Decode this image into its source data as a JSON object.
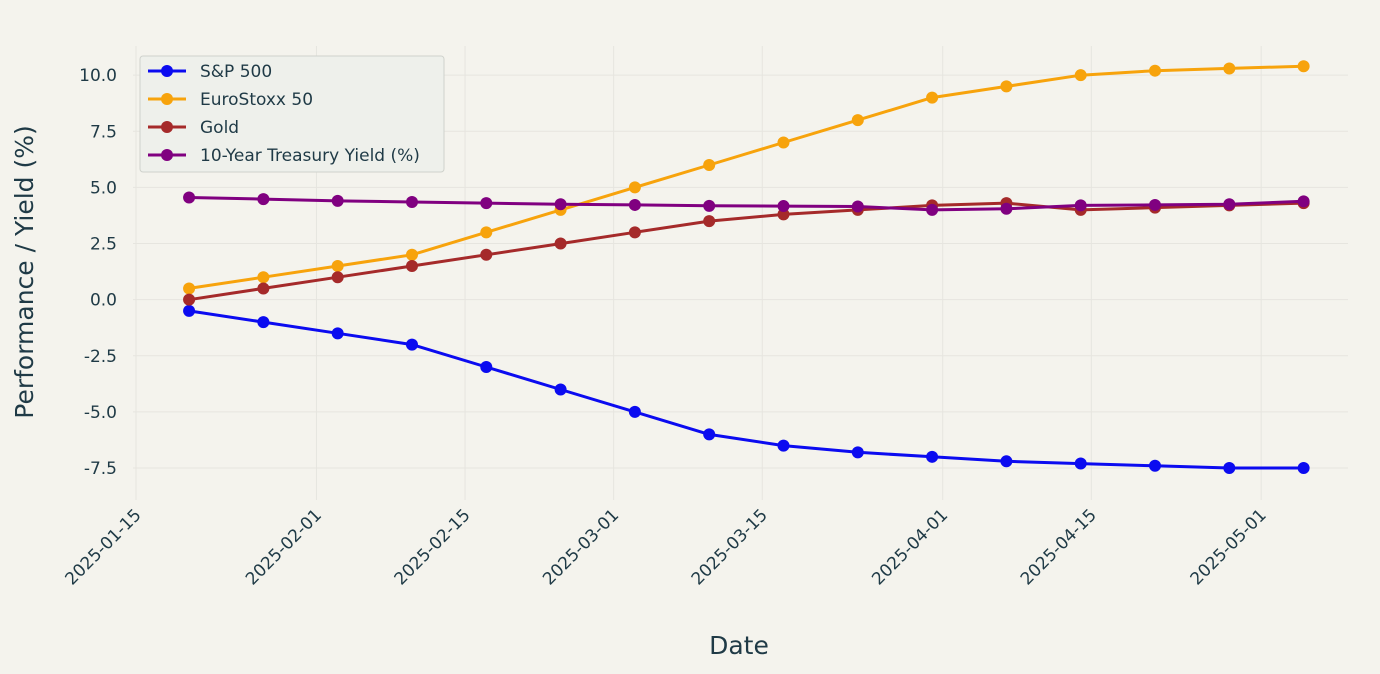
{
  "chart_data": {
    "type": "line",
    "title": "",
    "xlabel": "Date",
    "ylabel": "Performance / Yield (%)",
    "x_ticks": [
      "2025-01-15",
      "2025-02-01",
      "2025-02-15",
      "2025-03-01",
      "2025-03-15",
      "2025-04-01",
      "2025-04-15",
      "2025-05-01"
    ],
    "y_ticks": [
      "10.0",
      "7.5",
      "5.0",
      "2.5",
      "0.0",
      "-2.5",
      "-5.0",
      "-7.5"
    ],
    "xlim": [
      "2025-01-15",
      "2025-05-04"
    ],
    "ylim": [
      -8.3,
      11.3
    ],
    "grid": true,
    "legend_position": "top-left",
    "x": [
      "2025-01-20",
      "2025-01-27",
      "2025-02-03",
      "2025-02-10",
      "2025-02-17",
      "2025-02-24",
      "2025-03-03",
      "2025-03-10",
      "2025-03-17",
      "2025-03-24",
      "2025-03-31",
      "2025-04-07",
      "2025-04-14",
      "2025-04-21",
      "2025-04-28",
      "2025-05-05"
    ],
    "series": [
      {
        "name": "S&P 500",
        "color": "#0b0bf0",
        "values": [
          -0.5,
          -1.0,
          -1.5,
          -2.0,
          -3.0,
          -4.0,
          -5.0,
          -6.0,
          -6.5,
          -6.8,
          -7.0,
          -7.2,
          -7.3,
          -7.4,
          -7.5,
          -7.5
        ]
      },
      {
        "name": "EuroStoxx 50",
        "color": "#f7a30c",
        "values": [
          0.5,
          1.0,
          1.5,
          2.0,
          3.0,
          4.0,
          5.0,
          6.0,
          7.0,
          8.0,
          9.0,
          9.5,
          10.0,
          10.2,
          10.3,
          10.4
        ]
      },
      {
        "name": "Gold",
        "color": "#a52a2a",
        "values": [
          0.0,
          0.5,
          1.0,
          1.5,
          2.0,
          2.5,
          3.0,
          3.5,
          3.8,
          4.0,
          4.2,
          4.3,
          4.0,
          4.1,
          4.2,
          4.3
        ]
      },
      {
        "name": "10-Year Treasury Yield (%)",
        "color": "#800080",
        "values": [
          4.55,
          4.48,
          4.4,
          4.35,
          4.3,
          4.25,
          4.22,
          4.18,
          4.17,
          4.15,
          4.0,
          4.05,
          4.2,
          4.22,
          4.25,
          4.38
        ]
      }
    ]
  }
}
